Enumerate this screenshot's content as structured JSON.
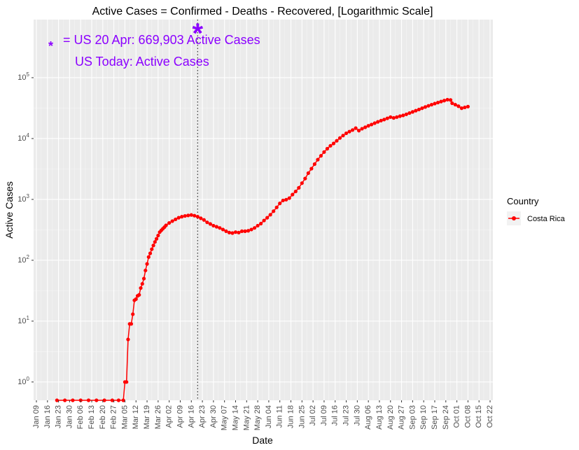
{
  "chart_data": {
    "type": "line",
    "title": "Active Cases = Confirmed - Deaths - Recovered, [Logarithmic Scale]",
    "xlabel": "Date",
    "ylabel": "Active Cases",
    "y_scale": "log10",
    "ylim": [
      0.5,
      900000
    ],
    "xlim": [
      "2020-01-09",
      "2020-10-22"
    ],
    "grid": true,
    "x_tick_labels": [
      "Jan 09",
      "Jan 16",
      "Jan 23",
      "Jan 30",
      "Feb 06",
      "Feb 13",
      "Feb 20",
      "Feb 27",
      "Mar 05",
      "Mar 12",
      "Mar 19",
      "Mar 26",
      "Apr 02",
      "Apr 09",
      "Apr 16",
      "Apr 23",
      "Apr 30",
      "May 07",
      "May 14",
      "May 21",
      "May 28",
      "Jun 04",
      "Jun 11",
      "Jun 18",
      "Jun 25",
      "Jul 02",
      "Jul 09",
      "Jul 16",
      "Jul 23",
      "Jul 30",
      "Aug 06",
      "Aug 13",
      "Aug 20",
      "Aug 27",
      "Sep 03",
      "Sep 10",
      "Sep 17",
      "Sep 24",
      "Oct 01",
      "Oct 08",
      "Oct 15",
      "Oct 22"
    ],
    "y_ticks": [
      {
        "value": 1,
        "exp": "0"
      },
      {
        "value": 10,
        "exp": "1"
      },
      {
        "value": 100,
        "exp": "2"
      },
      {
        "value": 1000,
        "exp": "3"
      },
      {
        "value": 10000,
        "exp": "4"
      },
      {
        "value": 100000,
        "exp": "5"
      }
    ],
    "legend": {
      "title": "Country",
      "position": "right"
    },
    "series": [
      {
        "name": "Costa Rica",
        "color": "#ff0000",
        "points": [
          [
            "2020-01-22",
            0.5
          ],
          [
            "2020-01-27",
            0.5
          ],
          [
            "2020-02-01",
            0.5
          ],
          [
            "2020-02-06",
            0.5
          ],
          [
            "2020-02-11",
            0.5
          ],
          [
            "2020-02-16",
            0.5
          ],
          [
            "2020-02-21",
            0.5
          ],
          [
            "2020-02-26",
            0.5
          ],
          [
            "2020-03-01",
            0.5
          ],
          [
            "2020-03-04",
            0.5
          ],
          [
            "2020-03-05",
            1
          ],
          [
            "2020-03-06",
            1
          ],
          [
            "2020-03-07",
            5
          ],
          [
            "2020-03-08",
            9
          ],
          [
            "2020-03-09",
            9
          ],
          [
            "2020-03-10",
            13
          ],
          [
            "2020-03-11",
            22
          ],
          [
            "2020-03-12",
            23
          ],
          [
            "2020-03-13",
            26
          ],
          [
            "2020-03-14",
            27
          ],
          [
            "2020-03-15",
            35
          ],
          [
            "2020-03-16",
            41
          ],
          [
            "2020-03-17",
            50
          ],
          [
            "2020-03-18",
            68
          ],
          [
            "2020-03-19",
            87
          ],
          [
            "2020-03-20",
            113
          ],
          [
            "2020-03-21",
            130
          ],
          [
            "2020-03-22",
            152
          ],
          [
            "2020-03-23",
            175
          ],
          [
            "2020-03-24",
            200
          ],
          [
            "2020-03-25",
            225
          ],
          [
            "2020-03-26",
            255
          ],
          [
            "2020-03-27",
            290
          ],
          [
            "2020-03-28",
            310
          ],
          [
            "2020-03-29",
            330
          ],
          [
            "2020-03-30",
            350
          ],
          [
            "2020-03-31",
            375
          ],
          [
            "2020-04-02",
            410
          ],
          [
            "2020-04-04",
            440
          ],
          [
            "2020-04-06",
            470
          ],
          [
            "2020-04-08",
            500
          ],
          [
            "2020-04-10",
            520
          ],
          [
            "2020-04-12",
            535
          ],
          [
            "2020-04-14",
            545
          ],
          [
            "2020-04-16",
            555
          ],
          [
            "2020-04-18",
            540
          ],
          [
            "2020-04-20",
            520
          ],
          [
            "2020-04-22",
            490
          ],
          [
            "2020-04-24",
            460
          ],
          [
            "2020-04-26",
            420
          ],
          [
            "2020-04-28",
            395
          ],
          [
            "2020-04-30",
            370
          ],
          [
            "2020-05-02",
            355
          ],
          [
            "2020-05-04",
            340
          ],
          [
            "2020-05-06",
            320
          ],
          [
            "2020-05-08",
            300
          ],
          [
            "2020-05-10",
            285
          ],
          [
            "2020-05-12",
            280
          ],
          [
            "2020-05-14",
            290
          ],
          [
            "2020-05-16",
            285
          ],
          [
            "2020-05-18",
            300
          ],
          [
            "2020-05-20",
            300
          ],
          [
            "2020-05-22",
            305
          ],
          [
            "2020-05-24",
            320
          ],
          [
            "2020-05-26",
            340
          ],
          [
            "2020-05-28",
            370
          ],
          [
            "2020-05-30",
            400
          ],
          [
            "2020-06-01",
            450
          ],
          [
            "2020-06-03",
            500
          ],
          [
            "2020-06-05",
            560
          ],
          [
            "2020-06-07",
            640
          ],
          [
            "2020-06-09",
            740
          ],
          [
            "2020-06-11",
            860
          ],
          [
            "2020-06-13",
            960
          ],
          [
            "2020-06-15",
            990
          ],
          [
            "2020-06-17",
            1050
          ],
          [
            "2020-06-19",
            1200
          ],
          [
            "2020-06-21",
            1350
          ],
          [
            "2020-06-23",
            1550
          ],
          [
            "2020-06-25",
            1850
          ],
          [
            "2020-06-27",
            2200
          ],
          [
            "2020-06-29",
            2700
          ],
          [
            "2020-07-01",
            3200
          ],
          [
            "2020-07-03",
            3800
          ],
          [
            "2020-07-05",
            4500
          ],
          [
            "2020-07-07",
            5200
          ],
          [
            "2020-07-09",
            6000
          ],
          [
            "2020-07-11",
            6800
          ],
          [
            "2020-07-13",
            7600
          ],
          [
            "2020-07-15",
            8300
          ],
          [
            "2020-07-17",
            9200
          ],
          [
            "2020-07-19",
            10200
          ],
          [
            "2020-07-21",
            11200
          ],
          [
            "2020-07-23",
            12200
          ],
          [
            "2020-07-25",
            13000
          ],
          [
            "2020-07-27",
            13800
          ],
          [
            "2020-07-29",
            14800
          ],
          [
            "2020-07-31",
            13500
          ],
          [
            "2020-08-02",
            14500
          ],
          [
            "2020-08-04",
            15300
          ],
          [
            "2020-08-06",
            16200
          ],
          [
            "2020-08-08",
            17000
          ],
          [
            "2020-08-10",
            17900
          ],
          [
            "2020-08-12",
            18800
          ],
          [
            "2020-08-14",
            19700
          ],
          [
            "2020-08-16",
            20500
          ],
          [
            "2020-08-18",
            21500
          ],
          [
            "2020-08-20",
            22500
          ],
          [
            "2020-08-22",
            21800
          ],
          [
            "2020-08-24",
            22500
          ],
          [
            "2020-08-26",
            23300
          ],
          [
            "2020-08-28",
            24000
          ],
          [
            "2020-08-30",
            25000
          ],
          [
            "2020-09-01",
            26200
          ],
          [
            "2020-09-03",
            27400
          ],
          [
            "2020-09-05",
            28700
          ],
          [
            "2020-09-07",
            30000
          ],
          [
            "2020-09-09",
            31500
          ],
          [
            "2020-09-11",
            33000
          ],
          [
            "2020-09-13",
            34500
          ],
          [
            "2020-09-15",
            36000
          ],
          [
            "2020-09-17",
            37500
          ],
          [
            "2020-09-19",
            39000
          ],
          [
            "2020-09-21",
            40500
          ],
          [
            "2020-09-23",
            42000
          ],
          [
            "2020-09-25",
            43500
          ],
          [
            "2020-09-27",
            43000
          ],
          [
            "2020-09-28",
            38000
          ],
          [
            "2020-09-30",
            36000
          ],
          [
            "2020-10-02",
            34000
          ],
          [
            "2020-10-04",
            31500
          ],
          [
            "2020-10-06",
            32500
          ],
          [
            "2020-10-08",
            33500
          ]
        ]
      }
    ],
    "annotations": [
      {
        "text": "= US 20 Apr: 669,903 Active Cases",
        "color": "#8b00ff"
      },
      {
        "text": "US Today:  Active Cases",
        "color": "#8b00ff"
      }
    ],
    "vline_date": "2020-04-20",
    "marker_point": [
      "2020-04-20",
      669903
    ]
  }
}
